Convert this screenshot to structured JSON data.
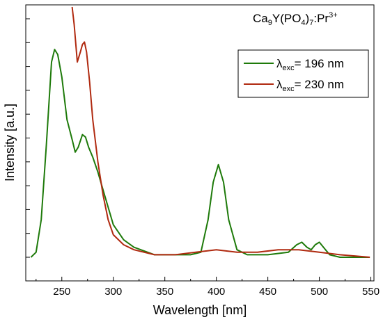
{
  "chart_data": {
    "type": "line",
    "annotation": {
      "base1": "Ca",
      "sub1": "9",
      "base2": "Y(PO",
      "sub2": "4",
      "base3": ")",
      "sub3": "7",
      "base4": ":Pr",
      "sup": "3+"
    },
    "xlabel": "Wavelength [nm]",
    "ylabel": "Intensity [a.u.]",
    "xlim": [
      215,
      553
    ],
    "ylim": [
      0,
      1.0
    ],
    "xticks": [
      250,
      300,
      350,
      400,
      450,
      500,
      550
    ],
    "yticks_labeled": false,
    "grid": false,
    "legend_position": "top-right",
    "series": [
      {
        "name": {
          "symbol": "λ",
          "sub": "exc",
          "text": "= 196 nm"
        },
        "color": "#1e7a0a",
        "x": [
          220,
          225,
          230,
          235,
          240,
          243,
          246,
          250,
          255,
          260,
          263,
          266,
          270,
          273,
          276,
          280,
          285,
          290,
          295,
          300,
          310,
          320,
          340,
          360,
          375,
          385,
          392,
          397,
          402,
          407,
          412,
          420,
          430,
          450,
          470,
          478,
          483,
          488,
          492,
          496,
          500,
          504,
          510,
          520,
          549
        ],
        "y": [
          0.0,
          0.02,
          0.15,
          0.45,
          0.78,
          0.83,
          0.81,
          0.72,
          0.55,
          0.47,
          0.42,
          0.44,
          0.49,
          0.48,
          0.44,
          0.4,
          0.34,
          0.27,
          0.2,
          0.13,
          0.07,
          0.04,
          0.01,
          0.01,
          0.01,
          0.02,
          0.15,
          0.3,
          0.37,
          0.3,
          0.15,
          0.03,
          0.01,
          0.01,
          0.02,
          0.05,
          0.06,
          0.04,
          0.03,
          0.05,
          0.06,
          0.04,
          0.01,
          0.0,
          0.0
        ]
      },
      {
        "name": {
          "symbol": "λ",
          "sub": "exc",
          "text": "= 230 nm"
        },
        "color": "#b02a10",
        "x": [
          260,
          262,
          265,
          268,
          270,
          272,
          274,
          277,
          280,
          285,
          290,
          295,
          300,
          310,
          320,
          340,
          360,
          380,
          400,
          420,
          440,
          460,
          480,
          500,
          520,
          549
        ],
        "y": [
          1.0,
          0.93,
          0.78,
          0.82,
          0.85,
          0.86,
          0.82,
          0.7,
          0.55,
          0.38,
          0.25,
          0.15,
          0.09,
          0.05,
          0.03,
          0.01,
          0.01,
          0.02,
          0.03,
          0.02,
          0.02,
          0.03,
          0.03,
          0.02,
          0.01,
          0.0
        ]
      }
    ]
  }
}
